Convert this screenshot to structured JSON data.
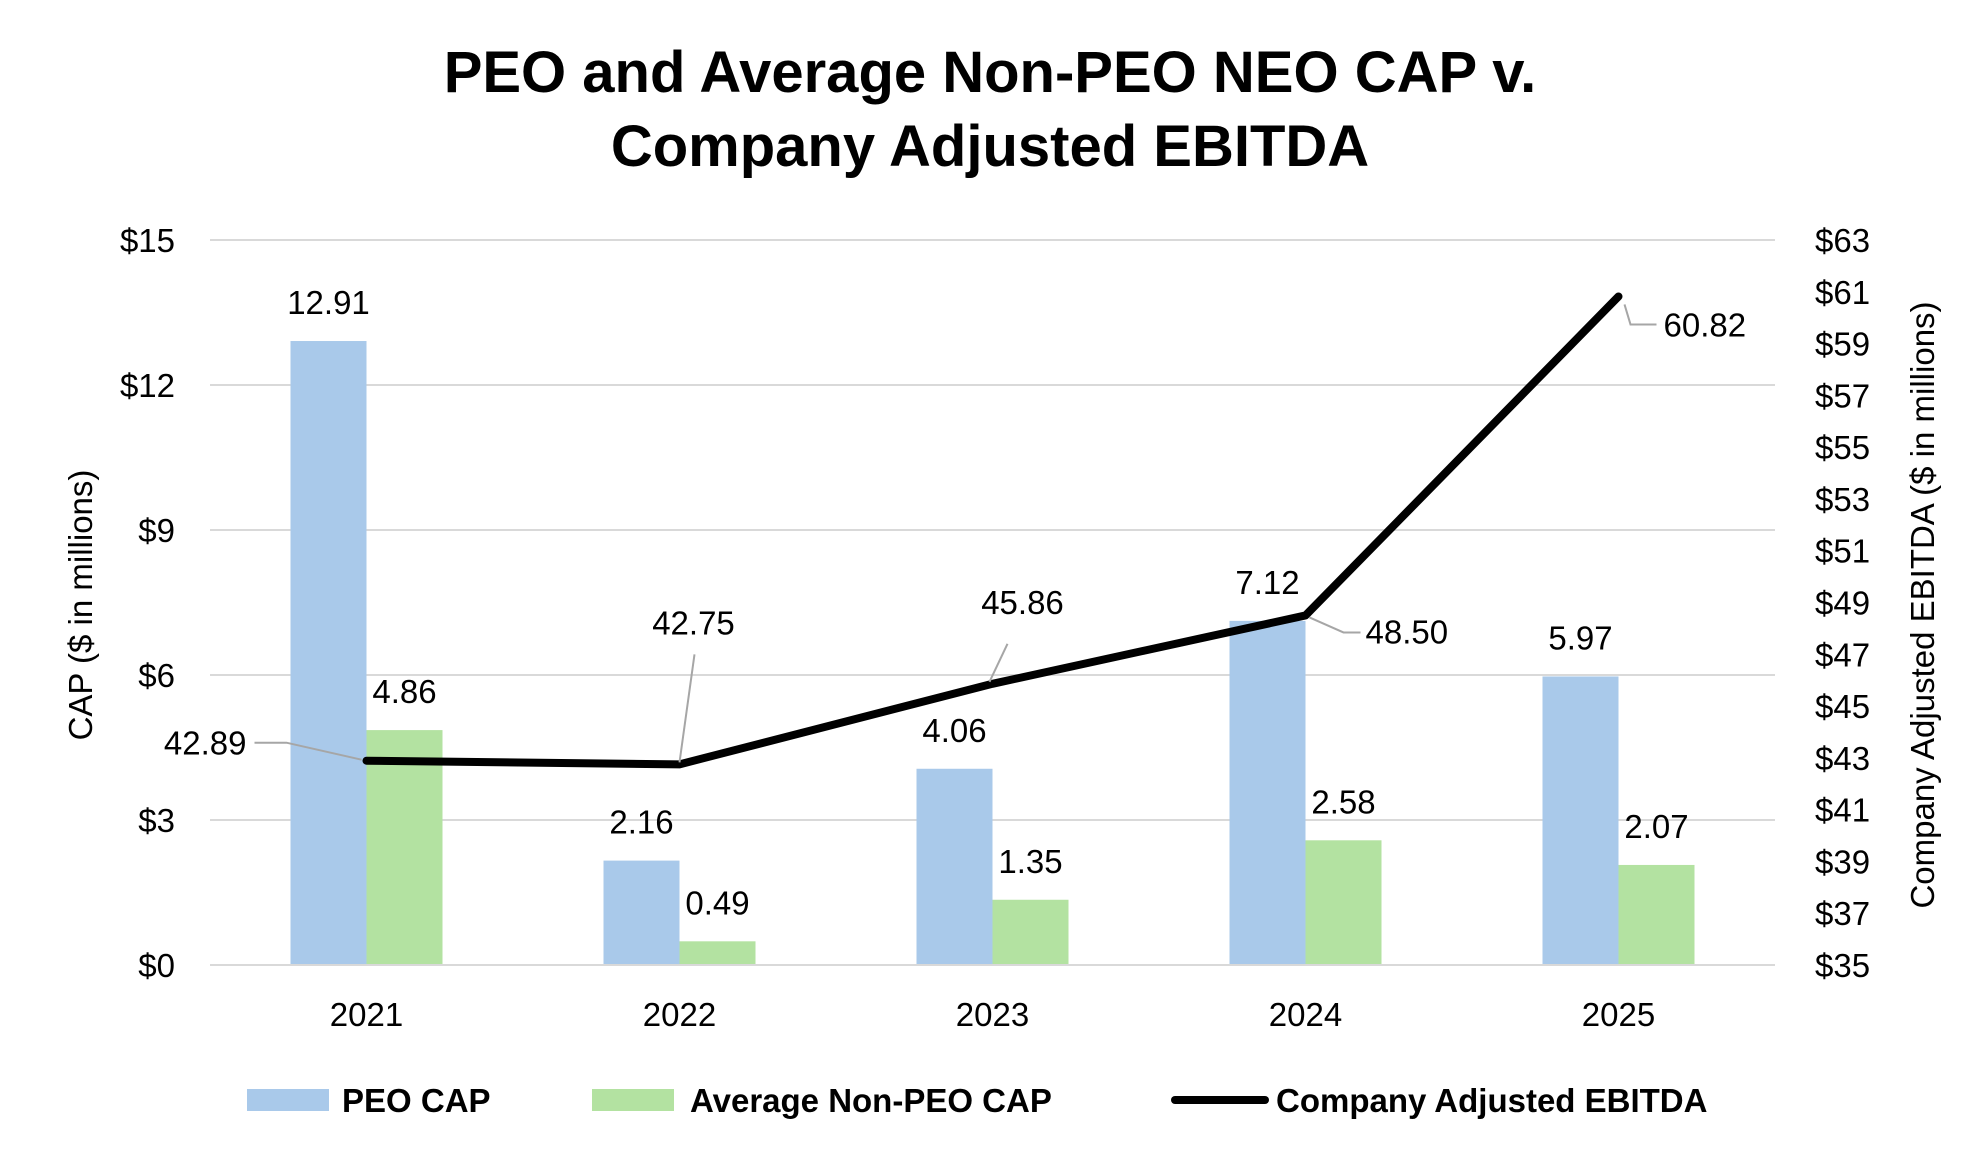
{
  "chart_data": {
    "type": "bar",
    "title_lines": [
      "PEO and Average Non-PEO NEO CAP v.",
      "Company Adjusted EBITDA"
    ],
    "categories": [
      "2021",
      "2022",
      "2023",
      "2024",
      "2025"
    ],
    "ylabel": "CAP ($ in millions)",
    "y2label": "Company Adjusted EBITDA ($ in millions)",
    "ylim": [
      0,
      15
    ],
    "y_ticks": [
      0,
      3,
      6,
      9,
      12,
      15
    ],
    "y_tick_labels": [
      "$0",
      "$3",
      "$6",
      "$9",
      "$12",
      "$15"
    ],
    "y2lim": [
      35,
      63
    ],
    "y2_ticks": [
      35,
      37,
      39,
      41,
      43,
      45,
      47,
      49,
      51,
      53,
      55,
      57,
      59,
      61,
      63
    ],
    "y2_tick_labels": [
      "$35",
      "$37",
      "$39",
      "$41",
      "$43",
      "$45",
      "$47",
      "$49",
      "$51",
      "$53",
      "$55",
      "$57",
      "$59",
      "$61",
      "$63"
    ],
    "grid": true,
    "legend_position": "bottom",
    "series": [
      {
        "name": "PEO CAP",
        "kind": "bar",
        "axis": "left",
        "color": "#a9c9ea",
        "values": [
          12.91,
          2.16,
          4.06,
          7.12,
          5.97
        ],
        "labels": [
          "12.91",
          "2.16",
          "4.06",
          "7.12",
          "5.97"
        ]
      },
      {
        "name": "Average Non-PEO CAP",
        "kind": "bar",
        "axis": "left",
        "color": "#b3e2a1",
        "values": [
          4.86,
          0.49,
          1.35,
          2.58,
          2.07
        ],
        "labels": [
          "4.86",
          "0.49",
          "1.35",
          "2.58",
          "2.07"
        ]
      },
      {
        "name": "Company Adjusted EBITDA",
        "kind": "line",
        "axis": "right",
        "color": "#000000",
        "values": [
          42.89,
          42.75,
          45.86,
          48.5,
          60.82
        ],
        "labels": [
          "42.89",
          "42.75",
          "45.86",
          "48.50",
          "60.82"
        ]
      }
    ]
  }
}
